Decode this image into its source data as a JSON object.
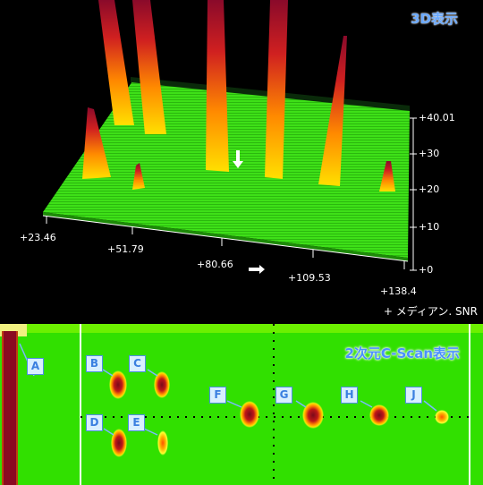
{
  "top_view": {
    "title": "3D表示",
    "legend": "+ メディアン. SNR",
    "x_ticks": [
      "+23.46",
      "+51.79",
      "+80.66",
      "+109.53",
      "+138.4"
    ],
    "z_ticks": [
      "+40.01",
      "+30",
      "+20",
      "+10",
      "+0"
    ]
  },
  "bottom_view": {
    "title": "2次元C-Scan表示",
    "markers": [
      "A",
      "B",
      "C",
      "D",
      "E",
      "F",
      "G",
      "H",
      "J"
    ]
  },
  "colors": {
    "surface": "#33e000",
    "background": "#000000",
    "peak_low": "#ffb000",
    "peak_high": "#b0102a",
    "label_fill": "#d8efff",
    "label_border": "#4d8fe0"
  }
}
